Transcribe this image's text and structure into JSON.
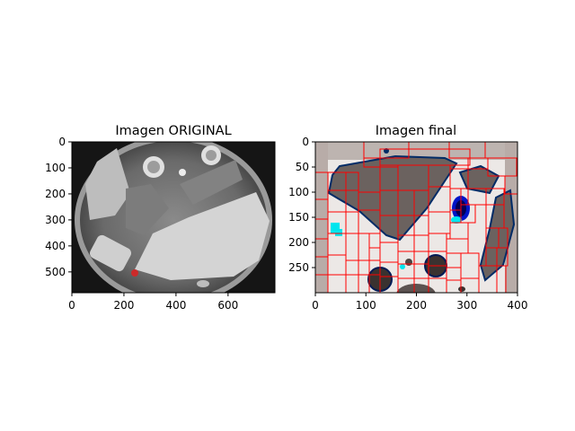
{
  "figure": {
    "background": "#ffffff"
  },
  "chart_data": [
    {
      "type": "image",
      "title": "Imagen ORIGINAL",
      "xlim": [
        0,
        780
      ],
      "ylim": [
        580,
        0
      ],
      "xticks": [
        0,
        200,
        400,
        600
      ],
      "yticks": [
        0,
        100,
        200,
        300,
        400,
        500
      ],
      "grid": false,
      "description_colors": {
        "background": "#1c1c1c",
        "rim": "#9a9a9a",
        "face": "#6e6e6e",
        "highlight": "#d0d0d0"
      }
    },
    {
      "type": "image",
      "title": "Imagen final",
      "xlim": [
        0,
        400
      ],
      "ylim": [
        300,
        0
      ],
      "xticks": [
        0,
        100,
        200,
        300,
        400
      ],
      "yticks": [
        0,
        50,
        100,
        150,
        200,
        250
      ],
      "grid": false,
      "overlay_color": "#ff0000",
      "highlight_color": "#00e5ee"
    }
  ]
}
